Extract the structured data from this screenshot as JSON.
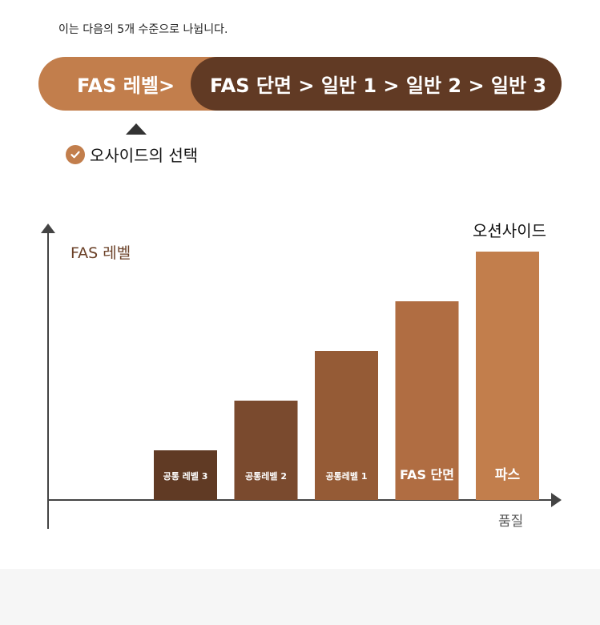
{
  "intro": "이는 다음의 5개 수준으로 나뉩니다.",
  "level_bar": {
    "left_label": "FAS 레벨>",
    "right_label": "FAS 단면 > 일반 1 > 일반 2 > 일반 3",
    "colors": {
      "left": "#c27e4c",
      "right": "#613a24"
    }
  },
  "choice_label": "오사이드의 선택",
  "chart_data": {
    "type": "bar",
    "ylabel": "FAS 레벨",
    "xlabel": "품질",
    "top_annotation": "오션사이드",
    "categories": [
      "공통 레벨 3",
      "공통레벨 2",
      "공통레벨 1",
      "FAS 단면",
      "파스"
    ],
    "values": [
      1,
      2,
      3,
      4,
      5
    ],
    "colors": [
      "#603a24",
      "#7a4a2e",
      "#955b36",
      "#b06d42",
      "#c27e4c"
    ],
    "ylim": [
      0,
      5
    ],
    "grid": false
  }
}
